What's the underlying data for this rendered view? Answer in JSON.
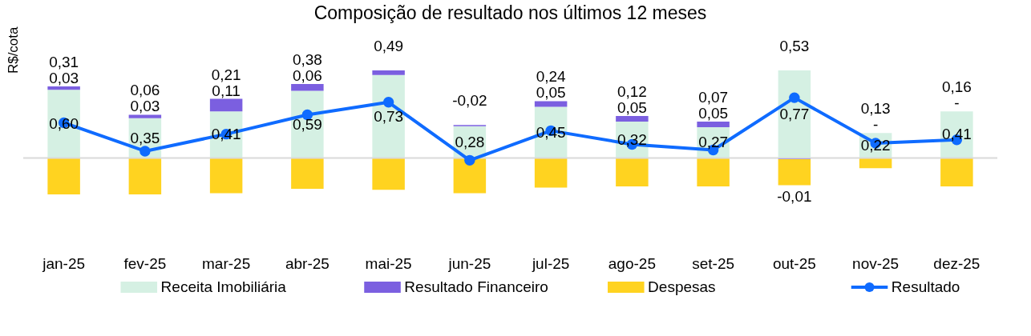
{
  "chart_data": {
    "type": "bar",
    "title": "Composição de resultado nos últimos 12 meses",
    "ylabel": "R$/cota",
    "categories": [
      "jan-25",
      "fev-25",
      "mar-25",
      "abr-25",
      "mai-25",
      "jun-25",
      "jul-25",
      "ago-25",
      "set-25",
      "out-25",
      "nov-25",
      "dez-25"
    ],
    "stacked": true,
    "legend": "bottom",
    "marker": "circle",
    "line_style": "solid",
    "ref_lines": [
      {
        "axis": "y",
        "value": 0,
        "color": "#d9d9d9"
      }
    ],
    "series": [
      {
        "name": "Receita Imobiliária",
        "color": "#d5f0e3",
        "values": [
          0.6,
          0.35,
          0.41,
          0.59,
          0.73,
          0.28,
          0.45,
          0.32,
          0.27,
          0.77,
          0.22,
          0.41
        ],
        "value_labels": [
          "0,60",
          "0,35",
          "0,41",
          "0,59",
          "0,73",
          "0,28",
          "0,45",
          "0,32",
          "0,27",
          "0,77",
          "0,22",
          "0,41"
        ]
      },
      {
        "name": "Resultado Financeiro",
        "color": "#7b5fe0",
        "values": [
          0.03,
          0.03,
          0.11,
          0.06,
          0.04,
          0.01,
          0.05,
          0.05,
          0.05,
          -0.01,
          0,
          0
        ],
        "value_labels": [
          "0,03",
          "0,03",
          "0,11",
          "0,06",
          null,
          null,
          "0,05",
          "0,05",
          "0,05",
          "-0,01",
          "-",
          "-"
        ]
      },
      {
        "name": "Despesas",
        "color": "#ffd320",
        "values": [
          -0.32,
          -0.32,
          -0.31,
          -0.27,
          -0.28,
          -0.31,
          -0.26,
          -0.25,
          -0.25,
          -0.23,
          -0.09,
          -0.25
        ]
      },
      {
        "name": "Resultado",
        "type": "line",
        "color": "#0f6bff",
        "values": [
          0.31,
          0.06,
          0.21,
          0.38,
          0.49,
          -0.02,
          0.24,
          0.12,
          0.07,
          0.53,
          0.13,
          0.16
        ],
        "value_labels": [
          "0,31",
          "0,06",
          "0,21",
          "0,38",
          "0,49",
          "-0,02",
          "0,24",
          "0,12",
          "0,07",
          "0,53",
          "0,13",
          "0,16"
        ]
      }
    ]
  }
}
